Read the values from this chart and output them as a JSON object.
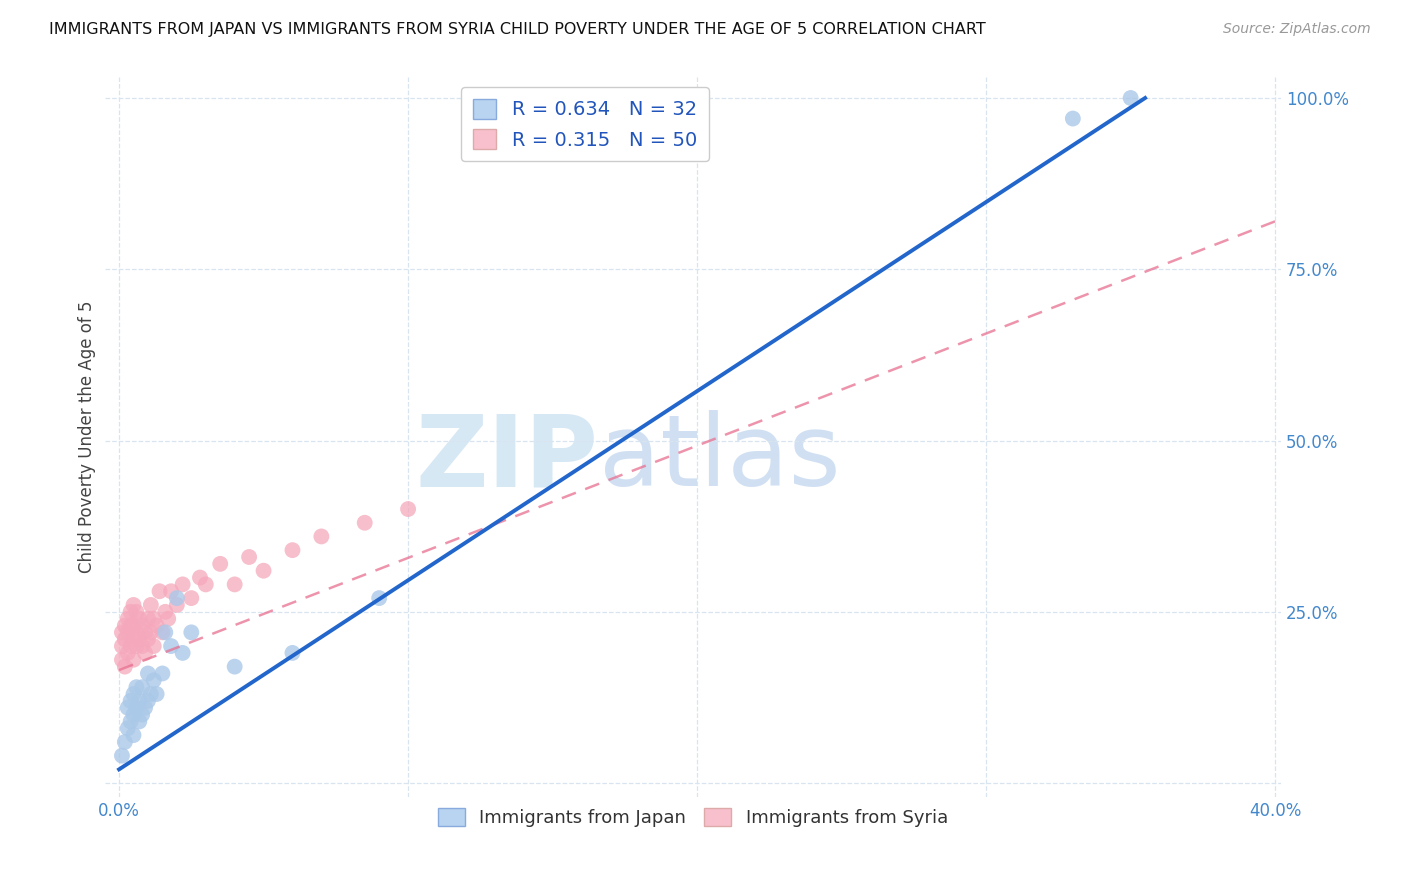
{
  "title": "IMMIGRANTS FROM JAPAN VS IMMIGRANTS FROM SYRIA CHILD POVERTY UNDER THE AGE OF 5 CORRELATION CHART",
  "source": "Source: ZipAtlas.com",
  "ylabel": "Child Poverty Under the Age of 5",
  "xlim": [
    -0.005,
    0.402
  ],
  "ylim": [
    -0.02,
    1.03
  ],
  "xticks": [
    0.0,
    0.1,
    0.2,
    0.3,
    0.4
  ],
  "xtick_labels": [
    "0.0%",
    "",
    "",
    "",
    "40.0%"
  ],
  "ytick_labels": [
    "",
    "25.0%",
    "50.0%",
    "75.0%",
    "100.0%"
  ],
  "yticks": [
    0.0,
    0.25,
    0.5,
    0.75,
    1.0
  ],
  "japan_R": 0.634,
  "japan_N": 32,
  "syria_R": 0.315,
  "syria_N": 50,
  "japan_color": "#aac8e8",
  "syria_color": "#f5a8bb",
  "japan_line_color": "#2266cc",
  "syria_line_color": "#e87090",
  "japan_scatter_x": [
    0.001,
    0.002,
    0.003,
    0.003,
    0.004,
    0.004,
    0.005,
    0.005,
    0.005,
    0.006,
    0.006,
    0.007,
    0.007,
    0.008,
    0.008,
    0.009,
    0.01,
    0.01,
    0.011,
    0.012,
    0.013,
    0.015,
    0.016,
    0.018,
    0.02,
    0.022,
    0.025,
    0.04,
    0.06,
    0.09,
    0.33,
    0.35
  ],
  "japan_scatter_y": [
    0.04,
    0.06,
    0.08,
    0.11,
    0.09,
    0.12,
    0.07,
    0.1,
    0.13,
    0.11,
    0.14,
    0.09,
    0.12,
    0.1,
    0.14,
    0.11,
    0.12,
    0.16,
    0.13,
    0.15,
    0.13,
    0.16,
    0.22,
    0.2,
    0.27,
    0.19,
    0.22,
    0.17,
    0.19,
    0.27,
    0.97,
    1.0
  ],
  "syria_scatter_x": [
    0.001,
    0.001,
    0.001,
    0.002,
    0.002,
    0.002,
    0.003,
    0.003,
    0.003,
    0.004,
    0.004,
    0.004,
    0.005,
    0.005,
    0.005,
    0.005,
    0.006,
    0.006,
    0.006,
    0.007,
    0.007,
    0.008,
    0.008,
    0.009,
    0.009,
    0.01,
    0.01,
    0.011,
    0.011,
    0.012,
    0.012,
    0.013,
    0.014,
    0.015,
    0.016,
    0.017,
    0.018,
    0.02,
    0.022,
    0.025,
    0.028,
    0.03,
    0.035,
    0.04,
    0.045,
    0.05,
    0.06,
    0.07,
    0.085,
    0.1
  ],
  "syria_scatter_y": [
    0.2,
    0.22,
    0.18,
    0.17,
    0.21,
    0.23,
    0.19,
    0.22,
    0.24,
    0.2,
    0.23,
    0.25,
    0.18,
    0.21,
    0.23,
    0.26,
    0.2,
    0.22,
    0.25,
    0.21,
    0.24,
    0.2,
    0.23,
    0.19,
    0.22,
    0.21,
    0.24,
    0.22,
    0.26,
    0.2,
    0.24,
    0.23,
    0.28,
    0.22,
    0.25,
    0.24,
    0.28,
    0.26,
    0.29,
    0.27,
    0.3,
    0.29,
    0.32,
    0.29,
    0.33,
    0.31,
    0.34,
    0.36,
    0.38,
    0.4
  ],
  "japan_line_x0": 0.0,
  "japan_line_y0": 0.02,
  "japan_line_x1": 0.355,
  "japan_line_y1": 1.0,
  "syria_line_x0": 0.0,
  "syria_line_y0": 0.165,
  "syria_line_x1": 0.4,
  "syria_line_y1": 0.82,
  "watermark_text1": "ZIP",
  "watermark_text2": "atlas",
  "background_color": "#ffffff",
  "grid_color": "#d8e4f0"
}
